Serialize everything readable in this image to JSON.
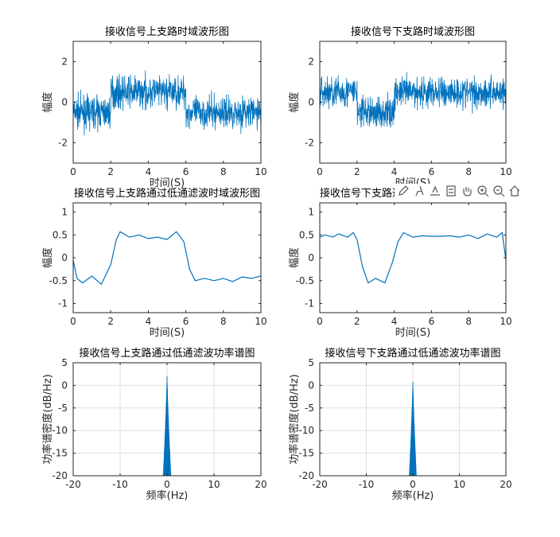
{
  "colors": {
    "series": "#0072BD",
    "axis": "#262626",
    "grid": "#dfdfdf"
  },
  "chart_data": [
    {
      "type": "line",
      "title": "接收信号上支路时域波形图",
      "xlabel": "时间(S)",
      "ylabel": "幅度",
      "xlim": [
        0,
        10
      ],
      "ylim": [
        -3,
        3
      ],
      "xticks": [
        0,
        2,
        4,
        6,
        8,
        10
      ],
      "yticks": [
        -2,
        0,
        2
      ],
      "grid": false,
      "series": [
        {
          "noise_amp": 0.55,
          "levels": [
            {
              "x0": 0,
              "x1": 2,
              "y": -0.5
            },
            {
              "x0": 2,
              "x1": 6,
              "y": 0.5
            },
            {
              "x0": 6,
              "x1": 10,
              "y": -0.5
            }
          ]
        }
      ]
    },
    {
      "type": "line",
      "title": "接收信号下支路时域波形图",
      "xlabel": "时间(S)",
      "ylabel": "幅度",
      "xlim": [
        0,
        10
      ],
      "ylim": [
        -3,
        3
      ],
      "xticks": [
        0,
        2,
        4,
        6,
        8,
        10
      ],
      "yticks": [
        -2,
        0,
        2
      ],
      "grid": false,
      "series": [
        {
          "noise_amp": 0.55,
          "levels": [
            {
              "x0": 0,
              "x1": 2,
              "y": 0.5
            },
            {
              "x0": 2,
              "x1": 4,
              "y": -0.5
            },
            {
              "x0": 4,
              "x1": 10,
              "y": 0.5
            }
          ]
        }
      ]
    },
    {
      "type": "line",
      "title": "接收信号上支路通过低通滤波时域波形图",
      "xlabel": "时间(S)",
      "ylabel": "幅度",
      "xlim": [
        0,
        10
      ],
      "ylim": [
        -1.2,
        1.2
      ],
      "xticks": [
        0,
        2,
        4,
        6,
        8,
        10
      ],
      "yticks": [
        -1,
        -0.5,
        0,
        0.5,
        1
      ],
      "grid": false,
      "series": [
        {
          "x": [
            0,
            0.2,
            0.5,
            1.0,
            1.5,
            2.0,
            2.3,
            2.5,
            3.0,
            3.5,
            4.0,
            4.5,
            5.0,
            5.5,
            5.9,
            6.2,
            6.5,
            7.0,
            7.5,
            8.0,
            8.5,
            9.0,
            9.5,
            10.0
          ],
          "y": [
            -0.05,
            -0.45,
            -0.55,
            -0.4,
            -0.58,
            -0.15,
            0.4,
            0.57,
            0.45,
            0.5,
            0.42,
            0.45,
            0.4,
            0.57,
            0.35,
            -0.25,
            -0.5,
            -0.45,
            -0.5,
            -0.45,
            -0.52,
            -0.42,
            -0.45,
            -0.4
          ]
        }
      ]
    },
    {
      "type": "line",
      "title": "接收信号下支路通过低通滤波时域波形图",
      "xlabel": "时间(S)",
      "ylabel": "幅度",
      "xlim": [
        0,
        10
      ],
      "ylim": [
        -1.2,
        1.2
      ],
      "xticks": [
        0,
        2,
        4,
        6,
        8,
        10
      ],
      "yticks": [
        -1,
        -0.5,
        0,
        0.5,
        1
      ],
      "grid": false,
      "series": [
        {
          "x": [
            0,
            0.3,
            0.7,
            1.0,
            1.5,
            1.8,
            2.0,
            2.3,
            2.6,
            3.0,
            3.5,
            3.9,
            4.2,
            4.5,
            5.0,
            5.5,
            6.0,
            6.5,
            7.0,
            7.5,
            8.0,
            8.5,
            9.0,
            9.5,
            9.8,
            10.0
          ],
          "y": [
            0.45,
            0.5,
            0.45,
            0.52,
            0.45,
            0.55,
            0.4,
            -0.2,
            -0.55,
            -0.45,
            -0.55,
            -0.1,
            0.35,
            0.55,
            0.45,
            0.48,
            0.47,
            0.47,
            0.48,
            0.45,
            0.5,
            0.42,
            0.52,
            0.45,
            0.55,
            -0.05
          ]
        }
      ]
    },
    {
      "type": "line",
      "title": "接收信号上支路通过低通滤波功率谱图",
      "xlabel": "频率(Hz)",
      "ylabel": "功率谱密度(dB/Hz)",
      "xlim": [
        -20,
        20
      ],
      "ylim": [
        -20,
        5
      ],
      "xticks": [
        -20,
        -10,
        0,
        10,
        20
      ],
      "yticks": [
        -20,
        -15,
        -10,
        -5,
        0,
        5
      ],
      "grid": true,
      "series": [
        {
          "peak_db": 2,
          "half_width_hz": 0.9
        }
      ]
    },
    {
      "type": "line",
      "title": "接收信号下支路通过低通滤波功率谱图",
      "xlabel": "频率(Hz)",
      "ylabel": "功率谱密度(dB/Hz)",
      "xlim": [
        -20,
        20
      ],
      "ylim": [
        -20,
        5
      ],
      "xticks": [
        -20,
        -10,
        0,
        10,
        20
      ],
      "yticks": [
        -20,
        -15,
        -10,
        -5,
        0,
        5
      ],
      "grid": true,
      "series": [
        {
          "peak_db": 0.8,
          "half_width_hz": 0.9
        }
      ]
    }
  ],
  "toolbar": [
    "edit-icon",
    "brush-icon",
    "data-tip-icon",
    "legend-icon",
    "pan-icon",
    "zoom-in-icon",
    "zoom-out-icon",
    "home-icon"
  ]
}
